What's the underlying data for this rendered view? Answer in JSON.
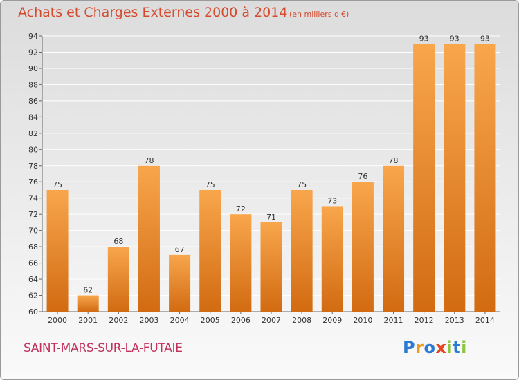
{
  "title": "Achats et Charges Externes 2000 à 2014",
  "subtitle": "(en milliers d'€)",
  "city": "SAINT-MARS-SUR-LA-FUTAIE",
  "logo": {
    "letters": [
      "P",
      "r",
      "o",
      "x",
      "i",
      "t",
      "i"
    ],
    "colors": [
      "#2b7bd3",
      "#f09a1e",
      "#2b7bd3",
      "#e8441f",
      "#8cc63f",
      "#2b7bd3",
      "#8cc63f"
    ]
  },
  "colors": {
    "bar_light": "#f8a64c",
    "bar_dark": "#d26b12",
    "grid": "#ffffff",
    "axis_text": "#333333"
  },
  "chart_data": {
    "type": "bar",
    "categories": [
      "2000",
      "2001",
      "2002",
      "2003",
      "2004",
      "2005",
      "2006",
      "2007",
      "2008",
      "2009",
      "2010",
      "2011",
      "2012",
      "2013",
      "2014"
    ],
    "values": [
      75,
      62,
      68,
      78,
      67,
      75,
      72,
      71,
      75,
      73,
      76,
      78,
      93,
      93,
      93
    ],
    "yticks": [
      60,
      62,
      64,
      66,
      68,
      70,
      72,
      74,
      76,
      78,
      80,
      82,
      84,
      86,
      88,
      90,
      92,
      94
    ],
    "ylim": [
      60,
      94
    ],
    "grid": true,
    "title": "Achats et Charges Externes 2000 à 2014",
    "xlabel": "",
    "ylabel": ""
  }
}
